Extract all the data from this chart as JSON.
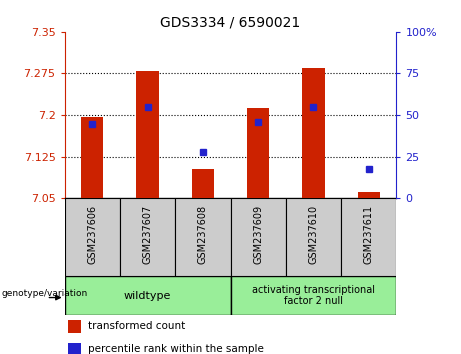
{
  "title": "GDS3334 / 6590021",
  "samples": [
    "GSM237606",
    "GSM237607",
    "GSM237608",
    "GSM237609",
    "GSM237610",
    "GSM237611"
  ],
  "bar_heights": [
    7.197,
    7.28,
    7.103,
    7.212,
    7.285,
    7.062
  ],
  "blue_y": [
    7.183,
    7.215,
    7.133,
    7.187,
    7.215,
    7.103
  ],
  "bar_bottom": 7.05,
  "ylim_left": [
    7.05,
    7.35
  ],
  "ylim_right": [
    0,
    100
  ],
  "yticks_left": [
    7.05,
    7.125,
    7.2,
    7.275,
    7.35
  ],
  "yticks_right": [
    0,
    25,
    50,
    75,
    100
  ],
  "ytick_labels_left": [
    "7.05",
    "7.125",
    "7.2",
    "7.275",
    "7.35"
  ],
  "ytick_labels_right": [
    "0",
    "25",
    "50",
    "75",
    "100%"
  ],
  "bar_color": "#cc2200",
  "blue_color": "#2222cc",
  "group1_label": "wildtype",
  "group2_label": "activating transcriptional\nfactor 2 null",
  "group1_indices": [
    0,
    1,
    2
  ],
  "group2_indices": [
    3,
    4,
    5
  ],
  "group_bg_color": "#99ee99",
  "genotype_label": "genotype/variation",
  "legend_red": "transformed count",
  "legend_blue": "percentile rank within the sample",
  "tick_label_bg": "#cccccc",
  "blue_marker_size": 5,
  "bar_width": 0.4
}
